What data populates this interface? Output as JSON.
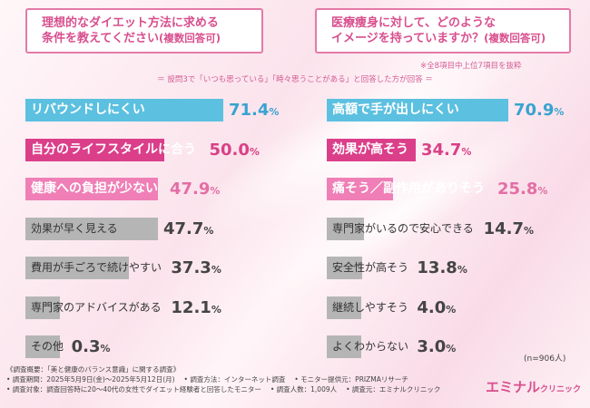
{
  "question_left": {
    "line1": "理想的なダイエット方法に求める",
    "line2": "条件を教えてください",
    "suffix": "(複数回答可)"
  },
  "question_right": {
    "line1": "医療痩身に対して、どのような",
    "line2": "イメージを持っていますか？",
    "suffix": "(複数回答可)"
  },
  "notes": {
    "top7": "※全8項目中上位7項目を抜粋",
    "basis": "＝ 設問3で「いつも思っている」「時々思うことがある」と回答した方が回答 ＝"
  },
  "colors": {
    "blue": "#5cc0e0",
    "pink_dark": "#db3f8a",
    "pink_light": "#ef7fb6",
    "gray": "#b5b5b5",
    "value_blue": "#39a3d0",
    "value_pink_dark": "#d84186",
    "value_pink_light": "#e36ea5",
    "value_gray": "#444444",
    "accent": "#e47aa8"
  },
  "chart_data": [
    {
      "type": "bar",
      "orientation": "horizontal",
      "title": "理想的なダイエット方法に求める条件を教えてください(複数回答可)",
      "unit": "%",
      "categories": [
        "リバウンドしにくい",
        "自分のライフスタイルに合う",
        "健康への負担が少ない",
        "効果が早く見える",
        "費用が手ごろで続けやすい",
        "専門家のアドバイスがある",
        "その他"
      ],
      "values": [
        71.4,
        50.0,
        47.9,
        47.7,
        37.3,
        12.1,
        0.3
      ],
      "value_labels": [
        "71.4",
        "50.0",
        "47.9",
        "47.7",
        "37.3",
        "12.1",
        "0.3"
      ],
      "styles": [
        "blue",
        "pink_dark",
        "pink_light",
        "gray",
        "gray",
        "gray",
        "gray"
      ]
    },
    {
      "type": "bar",
      "orientation": "horizontal",
      "title": "医療痩身に対して、どのようなイメージを持っていますか？(複数回答可)",
      "unit": "%",
      "categories": [
        "高額で手が出しにくい",
        "効果が高そう",
        "痛そう／副作用がありそう",
        "専門家がいるので安心できる",
        "安全性が高そう",
        "継続しやすそう",
        "よくわからない"
      ],
      "values": [
        70.9,
        34.7,
        25.8,
        14.7,
        13.8,
        4.0,
        3.0
      ],
      "value_labels": [
        "70.9",
        "34.7",
        "25.8",
        "14.7",
        "13.8",
        "4.0",
        "3.0"
      ],
      "styles": [
        "blue",
        "pink_dark",
        "pink_light",
        "gray",
        "gray",
        "gray",
        "gray"
      ]
    }
  ],
  "n_label": "(n=906人)",
  "footer": {
    "line1": "《調査概要：「美と健康のバランス意識」に関する調査》",
    "line2a": "• 調査期間：2025年5月9日(金)～2025年5月12日(月)",
    "line2b": "• 調査方法：インターネット調査",
    "line2c": "• モニター提供元：PRIZMAリサーチ",
    "line3a": "• 調査対象：調査回答時に20～40代の女性でダイエット経験者と回答したモニター",
    "line3b": "• 調査人数：1,009人",
    "line3c": "• 調査元：エミナルクリニック"
  },
  "logo": {
    "main": "エミナル",
    "sub": "クリニック"
  }
}
